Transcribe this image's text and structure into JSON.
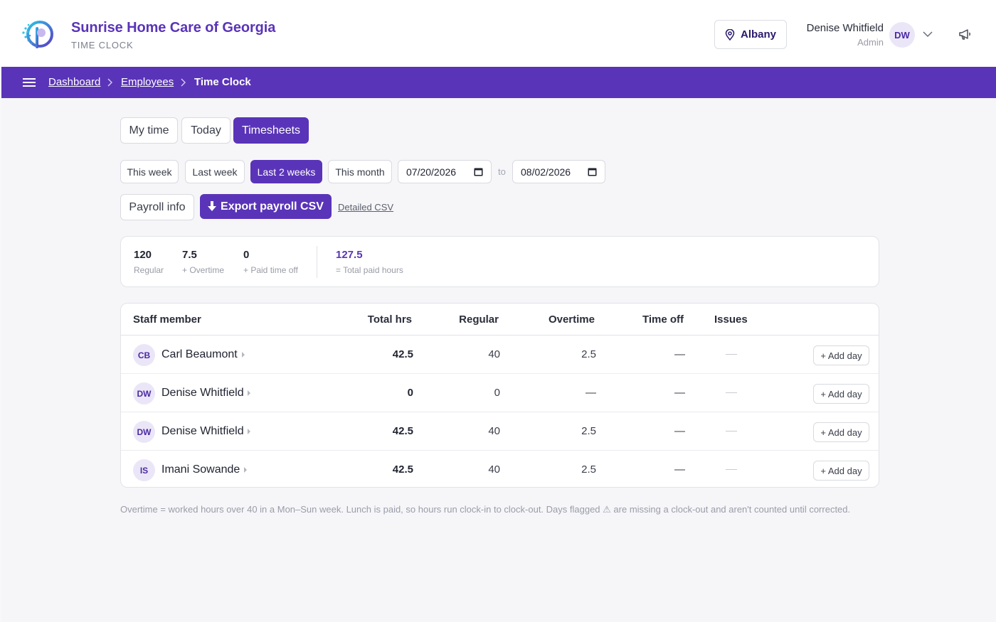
{
  "header": {
    "brand_title": "Sunrise Home Care of Georgia",
    "brand_subtitle": "TIME CLOCK",
    "location": "Albany",
    "user": {
      "name": "Denise Whitfield",
      "role": "Admin",
      "initials": "DW"
    }
  },
  "breadcrumb": [
    "Dashboard",
    "Employees",
    "Time Clock"
  ],
  "tabs": [
    {
      "label": "My time",
      "active": false
    },
    {
      "label": "Today",
      "active": false
    },
    {
      "label": "Timesheets",
      "active": true
    }
  ],
  "ranges": [
    {
      "label": "This week",
      "active": false
    },
    {
      "label": "Last week",
      "active": false
    },
    {
      "label": "Last 2 weeks",
      "active": true
    },
    {
      "label": "This month",
      "active": false
    }
  ],
  "date_from": "07/20/2026",
  "date_to_label": "to",
  "date_to": "08/02/2026",
  "actions": {
    "payroll_info": "Payroll info",
    "export_csv": "Export payroll CSV",
    "detailed_csv": "Detailed CSV"
  },
  "summary": [
    {
      "value": "120",
      "label": "Regular"
    },
    {
      "value": "7.5",
      "label": "+ Overtime"
    },
    {
      "value": "0",
      "label": "+ Paid time off"
    },
    {
      "value": "127.5",
      "label": "= Total paid hours"
    }
  ],
  "table": {
    "columns": [
      "Staff member",
      "Total hrs",
      "Regular",
      "Overtime",
      "Time off",
      "Issues"
    ],
    "add_day_label": "+ Add day",
    "rows": [
      {
        "initials": "CB",
        "name": "Carl Beaumont",
        "total": "42.5",
        "regular": "40",
        "overtime": "2.5",
        "time_off": "—"
      },
      {
        "initials": "DW",
        "name": "Denise Whitfield",
        "total": "0",
        "regular": "0",
        "overtime": "—",
        "time_off": "—"
      },
      {
        "initials": "DW",
        "name": "Denise Whitfield",
        "total": "42.5",
        "regular": "40",
        "overtime": "2.5",
        "time_off": "—"
      },
      {
        "initials": "IS",
        "name": "Imani Sowande",
        "total": "42.5",
        "regular": "40",
        "overtime": "2.5",
        "time_off": "—"
      }
    ]
  },
  "footnote": "Overtime = worked hours over 40 in a Mon–Sun week. Lunch is paid, so hours run clock-in to clock-out. Days flagged ⚠ are missing a clock-out and aren't counted until corrected.",
  "colors": {
    "accent": "#5a34b8",
    "accent_text": "#2a1a6b"
  }
}
